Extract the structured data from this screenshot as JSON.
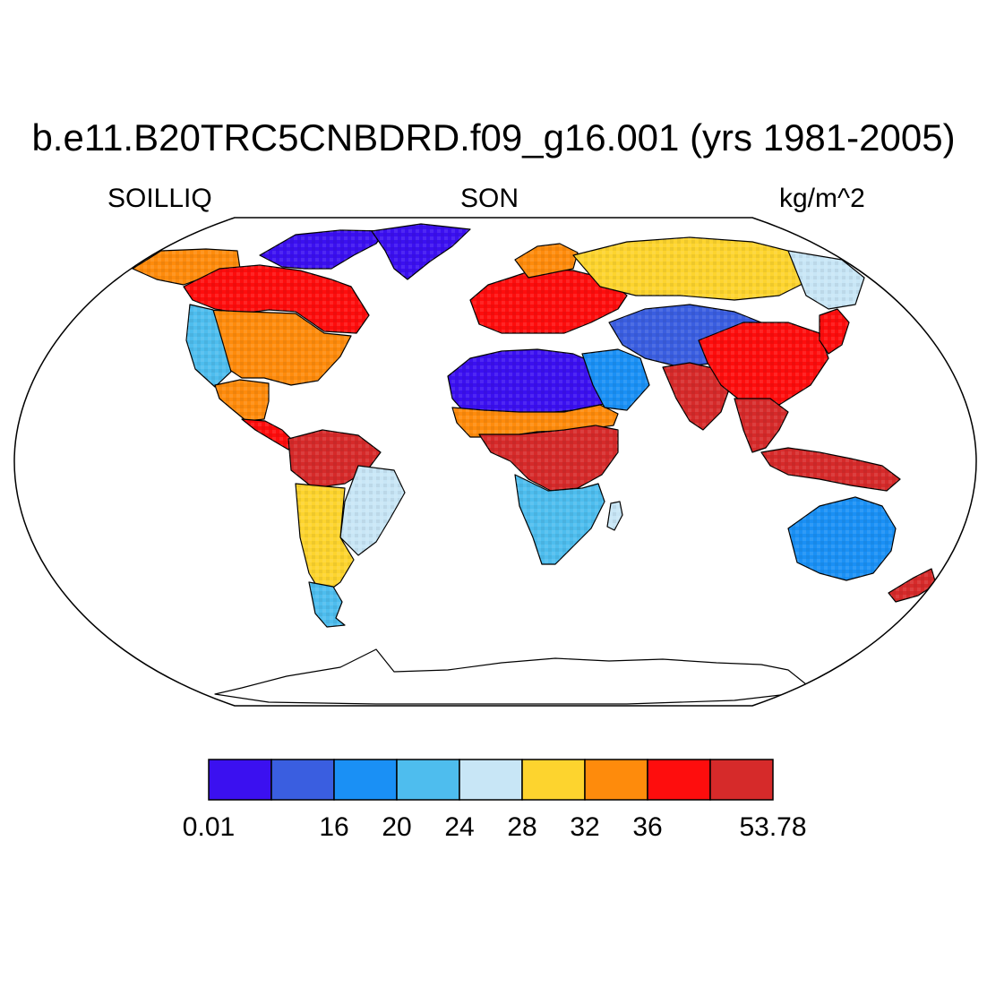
{
  "title": "b.e11.B20TRC5CNBDRD.f09_g16.001 (yrs 1981-2005)",
  "variable": "SOILLIQ",
  "season": "SON",
  "units": "kg/m^2",
  "colorbar": {
    "colors": [
      "#3b10f0",
      "#3a5ee0",
      "#1a90f5",
      "#4ebdee",
      "#c8e6f6",
      "#fdd42e",
      "#fe8b0c",
      "#fe0d0d",
      "#d62a2a"
    ],
    "tick_labels": [
      {
        "label": "0.01",
        "boundary": 0
      },
      {
        "label": "16",
        "boundary": 2
      },
      {
        "label": "20",
        "boundary": 3
      },
      {
        "label": "24",
        "boundary": 4
      },
      {
        "label": "28",
        "boundary": 5
      },
      {
        "label": "32",
        "boundary": 6
      },
      {
        "label": "36",
        "boundary": 7
      },
      {
        "label": "53.78",
        "boundary": 9
      }
    ]
  },
  "map": {
    "projection": "robinson",
    "ocean_color": "#ffffff",
    "regions": [
      {
        "name": "canadian-arctic",
        "level": 0
      },
      {
        "name": "greenland",
        "level": 0
      },
      {
        "name": "alaska",
        "level": 6
      },
      {
        "name": "canada",
        "level": 7
      },
      {
        "name": "united-states",
        "level": 6
      },
      {
        "name": "us-west",
        "level": 3
      },
      {
        "name": "mexico",
        "level": 6
      },
      {
        "name": "central-america",
        "level": 7
      },
      {
        "name": "amazon",
        "level": 8
      },
      {
        "name": "south-america-east",
        "level": 4
      },
      {
        "name": "south-america-south",
        "level": 5
      },
      {
        "name": "patagonia",
        "level": 3
      },
      {
        "name": "sahara",
        "level": 0
      },
      {
        "name": "sahel",
        "level": 6
      },
      {
        "name": "central-africa",
        "level": 8
      },
      {
        "name": "southern-africa",
        "level": 3
      },
      {
        "name": "madagascar",
        "level": 4
      },
      {
        "name": "europe",
        "level": 7
      },
      {
        "name": "scandinavia",
        "level": 6
      },
      {
        "name": "siberia",
        "level": 5
      },
      {
        "name": "russia-far-east",
        "level": 4
      },
      {
        "name": "central-asia",
        "level": 1
      },
      {
        "name": "arabia",
        "level": 2
      },
      {
        "name": "india",
        "level": 8
      },
      {
        "name": "china",
        "level": 7
      },
      {
        "name": "southeast-asia",
        "level": 8
      },
      {
        "name": "japan",
        "level": 7
      },
      {
        "name": "indonesia",
        "level": 8
      },
      {
        "name": "australia",
        "level": 2
      },
      {
        "name": "new-zealand",
        "level": 8
      },
      {
        "name": "antarctica",
        "level": null
      }
    ]
  }
}
